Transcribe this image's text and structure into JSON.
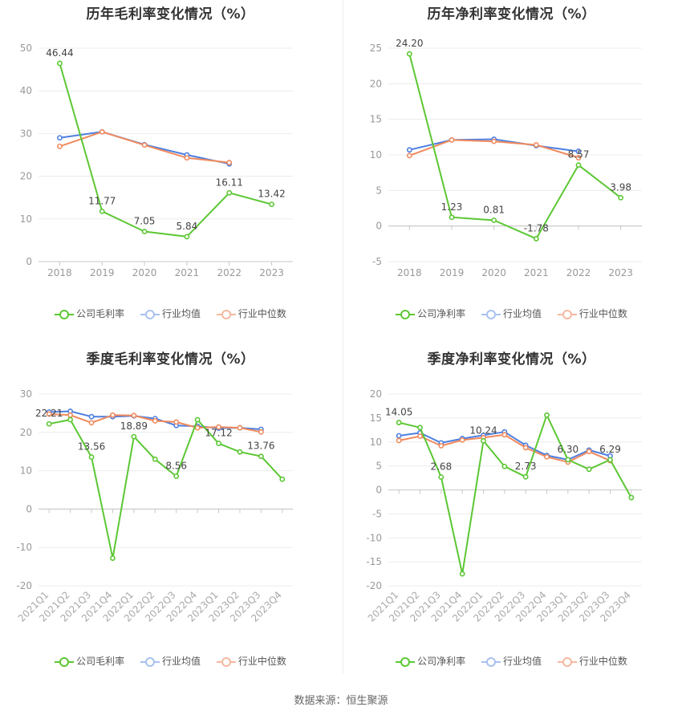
{
  "source": "数据来源：恒生聚源",
  "colors": {
    "company": "#5cc734",
    "avg": "#4e7fe0",
    "median": "#f08a5d"
  },
  "panels": [
    {
      "title": "历年毛利率变化情况（%）",
      "legend": [
        "公司毛利率",
        "行业均值",
        "行业中位数"
      ]
    },
    {
      "title": "历年净利率变化情况（%）",
      "legend": [
        "公司净利率",
        "行业均值",
        "行业中位数"
      ]
    },
    {
      "title": "季度毛利率变化情况（%）",
      "legend": [
        "公司毛利率",
        "行业均值",
        "行业中位数"
      ]
    },
    {
      "title": "季度净利率变化情况（%）",
      "legend": [
        "公司净利率",
        "行业均值",
        "行业中位数"
      ]
    }
  ],
  "chart_data": [
    {
      "type": "line",
      "title": "历年毛利率变化情况（%）",
      "categories": [
        "2018",
        "2019",
        "2020",
        "2021",
        "2022",
        "2023"
      ],
      "ylim": [
        0,
        50
      ],
      "yticks": [
        0,
        10,
        20,
        30,
        40,
        50
      ],
      "series": [
        {
          "name": "公司毛利率",
          "values": [
            46.44,
            11.77,
            7.05,
            5.84,
            16.11,
            13.42
          ],
          "labels": [
            "46.44",
            "11.77",
            "7.05",
            "5.84",
            "16.11",
            "13.42"
          ]
        },
        {
          "name": "行业均值",
          "values": [
            29.0,
            30.4,
            27.4,
            25.0,
            22.9,
            null
          ]
        },
        {
          "name": "行业中位数",
          "values": [
            27.0,
            30.4,
            27.3,
            24.3,
            23.2,
            null
          ]
        }
      ]
    },
    {
      "type": "line",
      "title": "历年净利率变化情况（%）",
      "categories": [
        "2018",
        "2019",
        "2020",
        "2021",
        "2022",
        "2023"
      ],
      "ylim": [
        -5,
        25
      ],
      "yticks": [
        -5,
        0,
        5,
        10,
        15,
        20,
        25
      ],
      "series": [
        {
          "name": "公司净利率",
          "values": [
            24.2,
            1.23,
            0.81,
            -1.78,
            8.57,
            3.98
          ],
          "labels": [
            "24.20",
            "1.23",
            "0.81",
            "-1.78",
            "8.57",
            "3.98"
          ]
        },
        {
          "name": "行业均值",
          "values": [
            10.7,
            12.1,
            12.2,
            11.3,
            10.5,
            null
          ]
        },
        {
          "name": "行业中位数",
          "values": [
            9.9,
            12.1,
            11.9,
            11.4,
            9.6,
            null
          ]
        }
      ]
    },
    {
      "type": "line",
      "title": "季度毛利率变化情况（%）",
      "categories": [
        "2021Q1",
        "2021Q2",
        "2021Q3",
        "2021Q4",
        "2022Q1",
        "2022Q2",
        "2022Q3",
        "2022Q4",
        "2023Q1",
        "2023Q2",
        "2023Q3",
        "2023Q4"
      ],
      "ylim": [
        -20,
        30
      ],
      "yticks": [
        -20,
        -10,
        0,
        10,
        20,
        30
      ],
      "series": [
        {
          "name": "公司毛利率",
          "values": [
            22.21,
            23.3,
            13.56,
            -12.8,
            18.89,
            13.0,
            8.56,
            23.3,
            17.12,
            14.9,
            13.76,
            7.8
          ],
          "labels": [
            "22.21",
            "",
            "13.56",
            "",
            "18.89",
            "",
            "8.56",
            "",
            "17.12",
            "",
            "13.76",
            ""
          ]
        },
        {
          "name": "行业均值",
          "values": [
            25.3,
            25.5,
            24.1,
            24.1,
            24.3,
            23.6,
            21.8,
            21.6,
            21.1,
            21.2,
            20.8,
            null
          ]
        },
        {
          "name": "行业中位数",
          "values": [
            24.8,
            24.5,
            22.5,
            24.5,
            24.4,
            23.0,
            22.7,
            21.2,
            21.4,
            21.2,
            20.1,
            null
          ]
        }
      ]
    },
    {
      "type": "line",
      "title": "季度净利率变化情况（%）",
      "categories": [
        "2021Q1",
        "2021Q2",
        "2021Q3",
        "2021Q4",
        "2022Q1",
        "2022Q2",
        "2022Q3",
        "2022Q4",
        "2023Q1",
        "2023Q2",
        "2023Q3",
        "2023Q4"
      ],
      "ylim": [
        -20,
        20
      ],
      "yticks": [
        -20,
        -15,
        -10,
        -5,
        0,
        5,
        10,
        15,
        20
      ],
      "series": [
        {
          "name": "公司净利率",
          "values": [
            14.05,
            13.0,
            2.68,
            -17.5,
            10.24,
            4.9,
            2.73,
            15.6,
            6.3,
            4.3,
            6.29,
            -1.6
          ],
          "labels": [
            "14.05",
            "",
            "2.68",
            "",
            "10.24",
            "",
            "2.73",
            "",
            "6.30",
            "",
            "6.29",
            ""
          ]
        },
        {
          "name": "行业均值",
          "values": [
            11.3,
            11.9,
            9.8,
            10.7,
            11.4,
            12.1,
            9.3,
            7.2,
            6.3,
            8.3,
            7.1,
            null
          ]
        },
        {
          "name": "行业中位数",
          "values": [
            10.3,
            11.2,
            9.2,
            10.4,
            10.9,
            11.5,
            8.8,
            6.9,
            5.8,
            8.0,
            6.1,
            null
          ]
        }
      ]
    }
  ]
}
